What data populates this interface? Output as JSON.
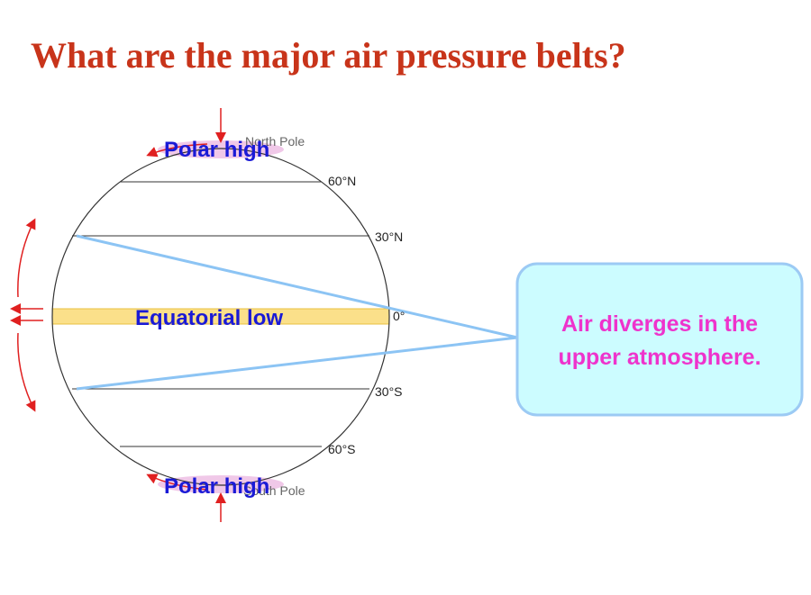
{
  "title": "What are the major air pressure belts?",
  "globe": {
    "poles": {
      "north": "North Pole",
      "south": "South Pole"
    },
    "latitudes": [
      "60°N",
      "30°N",
      "0°",
      "30°S",
      "60°S"
    ],
    "belts": {
      "north": "Polar high",
      "equator": "Equatorial low",
      "south": "Polar high"
    }
  },
  "callout": {
    "lines": [
      "Air diverges in the",
      "upper atmosphere."
    ]
  }
}
